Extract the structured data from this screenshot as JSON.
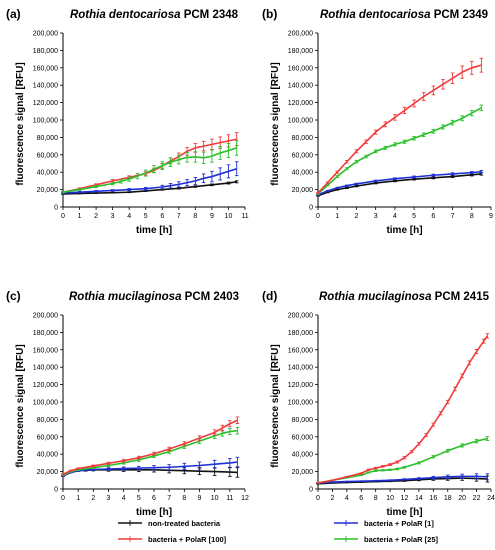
{
  "colors": {
    "non_treated": "#111111",
    "polar_100": "#ef3b3b",
    "polar_1": "#1f2fd6",
    "polar_25": "#2bbf2b"
  },
  "legend": [
    {
      "key": "non_treated",
      "label": "non-treated bacteria"
    },
    {
      "key": "polar_100",
      "label": "bacteria + PolaR [100]"
    },
    {
      "key": "polar_1",
      "label": "bacteria + PolaR [1]"
    },
    {
      "key": "polar_25",
      "label": "bacteria + PolaR [25]"
    }
  ],
  "chart_data": [
    {
      "type": "line",
      "letter": "(a)",
      "title_italic": "Rothia dentocariosa",
      "title_rest": " PCM 2348",
      "xlabel": "time [h]",
      "ylabel": "fluorescence signal [RFU]",
      "xlim": [
        0,
        11
      ],
      "xticks": [
        0,
        1,
        2,
        3,
        4,
        5,
        6,
        7,
        8,
        9,
        10,
        11
      ],
      "ylim": [
        0,
        200000
      ],
      "yticks": [
        0,
        20000,
        40000,
        60000,
        80000,
        100000,
        120000,
        140000,
        160000,
        180000,
        200000
      ],
      "ytick_labels": [
        "0",
        "20,000",
        "40,000",
        "60,000",
        "80,000",
        "100,000",
        "120,000",
        "140,000",
        "160,000",
        "180,000",
        "200,000"
      ],
      "series": [
        {
          "key": "non_treated",
          "x": [
            0,
            1,
            2,
            3,
            4,
            5,
            6,
            7,
            8,
            9,
            10,
            10.5
          ],
          "y": [
            15000,
            15500,
            16000,
            16500,
            17000,
            18500,
            20000,
            21500,
            23500,
            25500,
            27500,
            29000
          ],
          "err": [
            500,
            500,
            500,
            500,
            500,
            600,
            700,
            800,
            900,
            1000,
            1100,
            1200
          ]
        },
        {
          "key": "polar_1",
          "x": [
            0,
            1,
            2,
            3,
            4,
            5,
            6,
            6.5,
            7,
            7.5,
            8,
            8.5,
            9,
            9.5,
            10,
            10.5
          ],
          "y": [
            16000,
            17000,
            18000,
            19000,
            20000,
            21000,
            23000,
            24500,
            26000,
            28000,
            30000,
            33000,
            35000,
            38000,
            41000,
            44000
          ],
          "err": [
            800,
            800,
            900,
            1000,
            1200,
            1500,
            2000,
            2500,
            3000,
            3500,
            4000,
            5000,
            6000,
            7000,
            7500,
            8000
          ]
        },
        {
          "key": "polar_100",
          "x": [
            0,
            1,
            2,
            3,
            4,
            5,
            5.5,
            6,
            6.5,
            7,
            7.5,
            8,
            8.5,
            9,
            9.5,
            10,
            10.5
          ],
          "y": [
            17000,
            21000,
            25500,
            30000,
            34000,
            38500,
            42000,
            47000,
            53000,
            58000,
            64000,
            68000,
            70000,
            72000,
            74000,
            76000,
            78000
          ],
          "err": [
            800,
            1000,
            1200,
            1500,
            1800,
            2000,
            2500,
            3000,
            3500,
            4000,
            4500,
            5000,
            5500,
            6000,
            6500,
            7000,
            7500
          ]
        },
        {
          "key": "polar_25",
          "x": [
            0,
            1,
            2,
            3,
            3.5,
            4,
            4.5,
            5,
            5.5,
            6,
            6.5,
            7,
            7.5,
            8,
            8.5,
            9,
            9.5,
            10,
            10.5
          ],
          "y": [
            17000,
            20000,
            23500,
            27000,
            29500,
            32000,
            35500,
            39000,
            43500,
            47500,
            51500,
            54500,
            57000,
            57500,
            56500,
            58500,
            62000,
            65000,
            68000
          ],
          "err": [
            800,
            1000,
            1200,
            1500,
            2000,
            2500,
            3000,
            3500,
            4000,
            4500,
            5000,
            5000,
            5500,
            6000,
            6500,
            7000,
            7500,
            8000,
            8500
          ]
        }
      ]
    },
    {
      "type": "line",
      "letter": "(b)",
      "title_italic": "Rothia dentocariosa",
      "title_rest": " PCM 2349",
      "xlabel": "time [h]",
      "ylabel": "fluorescence signal [RFU]",
      "xlim": [
        0,
        9
      ],
      "xticks": [
        0,
        1,
        2,
        3,
        4,
        5,
        6,
        7,
        8,
        9
      ],
      "ylim": [
        0,
        200000
      ],
      "yticks": [
        0,
        20000,
        40000,
        60000,
        80000,
        100000,
        120000,
        140000,
        160000,
        180000,
        200000
      ],
      "ytick_labels": [
        "0",
        "20,000",
        "40,000",
        "60,000",
        "80,000",
        "100,000",
        "120,000",
        "140,000",
        "160,000",
        "180,000",
        "200,000"
      ],
      "series": [
        {
          "key": "non_treated",
          "x": [
            0,
            0.5,
            1,
            1.5,
            2,
            3,
            4,
            5,
            6,
            7,
            8,
            8.5
          ],
          "y": [
            13000,
            17000,
            20000,
            22000,
            24000,
            27500,
            30000,
            32000,
            33500,
            35000,
            37000,
            38000
          ],
          "err": [
            500,
            600,
            700,
            800,
            800,
            900,
            1000,
            1000,
            1100,
            1200,
            1300,
            1400
          ]
        },
        {
          "key": "polar_1",
          "x": [
            0,
            0.5,
            1,
            1.5,
            2,
            3,
            4,
            5,
            6,
            7,
            8,
            8.5
          ],
          "y": [
            14000,
            18500,
            22000,
            24500,
            26500,
            30000,
            32500,
            34500,
            36500,
            38000,
            39500,
            40500
          ],
          "err": [
            500,
            600,
            700,
            800,
            800,
            900,
            1000,
            1100,
            1200,
            1300,
            1400,
            1500
          ]
        },
        {
          "key": "polar_25",
          "x": [
            0,
            0.5,
            1,
            1.5,
            2,
            2.5,
            3,
            3.5,
            4,
            4.5,
            5,
            5.5,
            6,
            6.5,
            7,
            7.5,
            8,
            8.5
          ],
          "y": [
            15000,
            25000,
            35000,
            44000,
            52000,
            58000,
            64000,
            68000,
            72000,
            75000,
            79000,
            83000,
            87000,
            92000,
            97000,
            102000,
            108000,
            114000
          ],
          "err": [
            600,
            800,
            1000,
            1200,
            1400,
            1500,
            1600,
            1700,
            1800,
            1900,
            2000,
            2100,
            2200,
            2400,
            2600,
            2800,
            3000,
            3200
          ]
        },
        {
          "key": "polar_100",
          "x": [
            0,
            0.5,
            1,
            1.5,
            2,
            2.5,
            3,
            3.5,
            4,
            4.5,
            5,
            5.5,
            6,
            6.5,
            7,
            7.5,
            8,
            8.5
          ],
          "y": [
            16000,
            28000,
            40000,
            52000,
            64000,
            75000,
            86000,
            95000,
            103000,
            111000,
            119000,
            127000,
            134000,
            141000,
            148000,
            155000,
            160000,
            163000
          ],
          "err": [
            700,
            900,
            1200,
            1500,
            1800,
            2000,
            2400,
            2800,
            3200,
            3600,
            4000,
            4500,
            5000,
            5500,
            6000,
            7000,
            7500,
            8000
          ]
        }
      ]
    },
    {
      "type": "line",
      "letter": "(c)",
      "title_italic": "Rothia mucilaginosa",
      "title_rest": " PCM 2403",
      "xlabel": "time [h]",
      "ylabel": "fluorescence signal [RFU]",
      "xlim": [
        0,
        12
      ],
      "xticks": [
        0,
        1,
        2,
        3,
        4,
        5,
        6,
        7,
        8,
        9,
        10,
        11,
        12
      ],
      "ylim": [
        0,
        200000
      ],
      "yticks": [
        0,
        20000,
        40000,
        60000,
        80000,
        100000,
        120000,
        140000,
        160000,
        180000,
        200000
      ],
      "ytick_labels": [
        "0",
        "20,000",
        "40,000",
        "60,000",
        "80,000",
        "100,000",
        "120,000",
        "140,000",
        "160,000",
        "180,000",
        "200,000"
      ],
      "series": [
        {
          "key": "non_treated",
          "x": [
            0,
            0.5,
            1,
            1.5,
            2,
            3,
            4,
            5,
            6,
            7,
            8,
            9,
            10,
            11,
            11.5
          ],
          "y": [
            15000,
            19000,
            21000,
            21500,
            22000,
            22000,
            22000,
            22000,
            22000,
            21500,
            21000,
            20500,
            20000,
            19500,
            19000
          ],
          "err": [
            500,
            600,
            800,
            1000,
            1200,
            1500,
            1800,
            2000,
            2500,
            3000,
            3500,
            4000,
            4500,
            5000,
            5500
          ]
        },
        {
          "key": "polar_1",
          "x": [
            0,
            0.5,
            1,
            1.5,
            2,
            3,
            4,
            5,
            6,
            7,
            8,
            9,
            10,
            11,
            11.5
          ],
          "y": [
            15000,
            19000,
            21000,
            22000,
            22500,
            23000,
            23500,
            24000,
            24500,
            25000,
            26000,
            27000,
            28500,
            30000,
            31000
          ],
          "err": [
            500,
            600,
            800,
            1000,
            1200,
            1500,
            1800,
            2000,
            2500,
            3000,
            3500,
            4000,
            4500,
            5000,
            5500
          ]
        },
        {
          "key": "polar_25",
          "x": [
            0,
            0.5,
            1,
            2,
            3,
            4,
            5,
            6,
            7,
            8,
            9,
            10,
            10.5,
            11,
            11.5
          ],
          "y": [
            16000,
            20000,
            22000,
            24500,
            27000,
            30000,
            33500,
            38000,
            43000,
            49000,
            55000,
            61000,
            64000,
            66000,
            67000
          ],
          "err": [
            600,
            700,
            800,
            1000,
            1200,
            1400,
            1600,
            1800,
            2000,
            2300,
            2600,
            3000,
            3200,
            3500,
            3800
          ]
        },
        {
          "key": "polar_100",
          "x": [
            0,
            0.5,
            1,
            2,
            3,
            4,
            5,
            6,
            7,
            8,
            9,
            10,
            10.5,
            11,
            11.5
          ],
          "y": [
            17000,
            21000,
            23500,
            26500,
            29500,
            32500,
            36000,
            40500,
            46000,
            52000,
            58500,
            65000,
            70000,
            75000,
            79000
          ],
          "err": [
            600,
            700,
            800,
            1000,
            1200,
            1400,
            1600,
            1800,
            2000,
            2300,
            2600,
            3000,
            3200,
            3500,
            3800
          ]
        }
      ]
    },
    {
      "type": "line",
      "letter": "(d)",
      "title_italic": "Rothia mucilaginosa",
      "title_rest": " PCM 2415",
      "xlabel": "time [h]",
      "ylabel": "fluorescence signal [RFU]",
      "xlim": [
        0,
        24
      ],
      "xticks": [
        0,
        2,
        4,
        6,
        8,
        10,
        12,
        14,
        16,
        18,
        20,
        22,
        24
      ],
      "ylim": [
        0,
        200000
      ],
      "yticks": [
        0,
        20000,
        40000,
        60000,
        80000,
        100000,
        120000,
        140000,
        160000,
        180000,
        200000
      ],
      "ytick_labels": [
        "0",
        "20,000",
        "40,000",
        "60,000",
        "80,000",
        "100,000",
        "120,000",
        "140,000",
        "160,000",
        "180,000",
        "200,000"
      ],
      "series": [
        {
          "key": "non_treated",
          "x": [
            0,
            2,
            4,
            6,
            8,
            10,
            12,
            14,
            16,
            18,
            20,
            22,
            23.5
          ],
          "y": [
            6000,
            7000,
            7500,
            8000,
            8500,
            9000,
            9500,
            10500,
            11500,
            12000,
            12500,
            12000,
            11500
          ],
          "err": [
            300,
            300,
            400,
            400,
            500,
            600,
            800,
            1000,
            1500,
            2000,
            2500,
            3000,
            3500
          ]
        },
        {
          "key": "polar_1",
          "x": [
            0,
            2,
            4,
            6,
            8,
            10,
            12,
            14,
            16,
            18,
            20,
            22,
            23.5
          ],
          "y": [
            7000,
            8000,
            8500,
            9000,
            9500,
            10000,
            11000,
            12000,
            13000,
            14000,
            14500,
            14500,
            14000
          ],
          "err": [
            300,
            300,
            400,
            400,
            500,
            600,
            800,
            1000,
            1500,
            2000,
            2500,
            3000,
            3500
          ]
        },
        {
          "key": "polar_25",
          "x": [
            0,
            2,
            4,
            6,
            7,
            8,
            9,
            10,
            11,
            12,
            14,
            16,
            18,
            20,
            22,
            23.5
          ],
          "y": [
            7000,
            10000,
            13000,
            16000,
            19000,
            21000,
            21500,
            22000,
            23000,
            25000,
            30000,
            37000,
            44000,
            50000,
            55000,
            58000
          ],
          "err": [
            300,
            400,
            500,
            600,
            700,
            800,
            800,
            800,
            900,
            1000,
            1200,
            1400,
            1600,
            1800,
            2000,
            2200
          ]
        },
        {
          "key": "polar_100",
          "x": [
            0,
            2,
            4,
            6,
            7,
            8,
            9,
            10,
            11,
            12,
            13,
            14,
            15,
            16,
            17,
            18,
            19,
            20,
            21,
            22,
            23,
            23.5
          ],
          "y": [
            7000,
            10000,
            14000,
            18000,
            22000,
            24000,
            26000,
            28000,
            31000,
            36000,
            43000,
            52000,
            62000,
            74000,
            87000,
            100000,
            115000,
            130000,
            145000,
            158000,
            170000,
            176000
          ],
          "err": [
            300,
            400,
            500,
            700,
            800,
            900,
            1000,
            1100,
            1200,
            1300,
            1400,
            1500,
            1600,
            1700,
            1800,
            1900,
            2000,
            2100,
            2200,
            2300,
            2400,
            2500
          ]
        }
      ]
    }
  ]
}
